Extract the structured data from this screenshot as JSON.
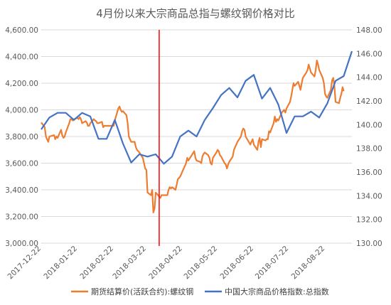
{
  "chart_data": {
    "type": "line",
    "title": "4月份以来大宗商品总指与螺纹钢价格对比",
    "xlabel": "",
    "ylabel": "",
    "ylim_left": [
      3000,
      4600
    ],
    "ylim_right": [
      130,
      148
    ],
    "left_ticks": [
      "3,000.00",
      "3,200.00",
      "3,400.00",
      "3,600.00",
      "3,800.00",
      "4,000.00",
      "4,200.00",
      "4,400.00",
      "4,600.00"
    ],
    "right_ticks": [
      "130.00",
      "132.00",
      "134.00",
      "136.00",
      "138.00",
      "140.00",
      "142.00",
      "144.00",
      "146.00",
      "148.00"
    ],
    "x_ticks": [
      "2017-12-22",
      "2018-01-22",
      "2018-02-22",
      "2018-03-22",
      "2018-04-22",
      "2018-05-22",
      "2018-06-22",
      "2018-07-22",
      "2018-08-22"
    ],
    "grid": true,
    "legend_position": "bottom",
    "marker": {
      "date": "2018-04-02",
      "color": "#ff0000"
    },
    "series": [
      {
        "name": "期货结算价(活跃合约):螺纹钢",
        "axis": "left",
        "color": "#ed7d31",
        "points": [
          [
            "2017-12-22",
            3905
          ],
          [
            "2017-12-25",
            3870
          ],
          [
            "2017-12-26",
            3800
          ],
          [
            "2017-12-27",
            3780
          ],
          [
            "2017-12-28",
            3760
          ],
          [
            "2017-12-29",
            3800
          ],
          [
            "2018-01-02",
            3810
          ],
          [
            "2018-01-03",
            3780
          ],
          [
            "2018-01-04",
            3800
          ],
          [
            "2018-01-05",
            3790
          ],
          [
            "2018-01-08",
            3850
          ],
          [
            "2018-01-09",
            3810
          ],
          [
            "2018-01-10",
            3790
          ],
          [
            "2018-01-11",
            3800
          ],
          [
            "2018-01-12",
            3830
          ],
          [
            "2018-01-15",
            3900
          ],
          [
            "2018-01-16",
            3930
          ],
          [
            "2018-01-17",
            3930
          ],
          [
            "2018-01-18",
            3920
          ],
          [
            "2018-01-19",
            3930
          ],
          [
            "2018-01-22",
            3940
          ],
          [
            "2018-01-23",
            3930
          ],
          [
            "2018-01-24",
            3945
          ],
          [
            "2018-01-25",
            3930
          ],
          [
            "2018-01-26",
            3900
          ],
          [
            "2018-01-29",
            3915
          ],
          [
            "2018-01-30",
            3905
          ],
          [
            "2018-01-31",
            3880
          ],
          [
            "2018-02-01",
            3880
          ],
          [
            "2018-02-02",
            3900
          ],
          [
            "2018-02-05",
            3930
          ],
          [
            "2018-02-06",
            3920
          ],
          [
            "2018-02-07",
            3915
          ],
          [
            "2018-02-08",
            3900
          ],
          [
            "2018-02-09",
            3900
          ],
          [
            "2018-02-12",
            3910
          ],
          [
            "2018-02-13",
            3870
          ],
          [
            "2018-02-14",
            3880
          ],
          [
            "2018-02-22",
            3880
          ],
          [
            "2018-02-23",
            3920
          ],
          [
            "2018-02-26",
            4010
          ],
          [
            "2018-02-27",
            4025
          ],
          [
            "2018-02-28",
            4000
          ],
          [
            "2018-03-01",
            3985
          ],
          [
            "2018-03-02",
            3990
          ],
          [
            "2018-03-05",
            3960
          ],
          [
            "2018-03-06",
            3900
          ],
          [
            "2018-03-07",
            3800
          ],
          [
            "2018-03-08",
            3780
          ],
          [
            "2018-03-09",
            3760
          ],
          [
            "2018-03-12",
            3760
          ],
          [
            "2018-03-13",
            3720
          ],
          [
            "2018-03-14",
            3700
          ],
          [
            "2018-03-15",
            3690
          ],
          [
            "2018-03-16",
            3680
          ],
          [
            "2018-03-19",
            3640
          ],
          [
            "2018-03-20",
            3600
          ],
          [
            "2018-03-21",
            3560
          ],
          [
            "2018-03-22",
            3550
          ],
          [
            "2018-03-23",
            3380
          ],
          [
            "2018-03-26",
            3360
          ],
          [
            "2018-03-27",
            3400
          ],
          [
            "2018-03-28",
            3230
          ],
          [
            "2018-03-29",
            3260
          ],
          [
            "2018-03-30",
            3380
          ],
          [
            "2018-04-02",
            3350
          ],
          [
            "2018-04-03",
            3340
          ],
          [
            "2018-04-04",
            3360
          ],
          [
            "2018-04-09",
            3360
          ],
          [
            "2018-04-10",
            3400
          ],
          [
            "2018-04-11",
            3420
          ],
          [
            "2018-04-12",
            3410
          ],
          [
            "2018-04-13",
            3420
          ],
          [
            "2018-04-16",
            3400
          ],
          [
            "2018-04-17",
            3440
          ],
          [
            "2018-04-18",
            3480
          ],
          [
            "2018-04-19",
            3490
          ],
          [
            "2018-04-20",
            3500
          ],
          [
            "2018-04-23",
            3560
          ],
          [
            "2018-04-24",
            3580
          ],
          [
            "2018-04-25",
            3600
          ],
          [
            "2018-04-26",
            3640
          ],
          [
            "2018-04-27",
            3620
          ],
          [
            "2018-05-02",
            3690
          ],
          [
            "2018-05-03",
            3640
          ],
          [
            "2018-05-04",
            3620
          ],
          [
            "2018-05-07",
            3610
          ],
          [
            "2018-05-08",
            3600
          ],
          [
            "2018-05-09",
            3650
          ],
          [
            "2018-05-10",
            3670
          ],
          [
            "2018-05-11",
            3680
          ],
          [
            "2018-05-14",
            3660
          ],
          [
            "2018-05-15",
            3640
          ],
          [
            "2018-05-16",
            3600
          ],
          [
            "2018-05-17",
            3590
          ],
          [
            "2018-05-18",
            3640
          ],
          [
            "2018-05-21",
            3680
          ],
          [
            "2018-05-22",
            3700
          ],
          [
            "2018-05-23",
            3690
          ],
          [
            "2018-05-24",
            3660
          ],
          [
            "2018-05-25",
            3650
          ],
          [
            "2018-05-28",
            3600
          ],
          [
            "2018-05-29",
            3590
          ],
          [
            "2018-05-30",
            3560
          ],
          [
            "2018-05-31",
            3590
          ],
          [
            "2018-06-01",
            3610
          ],
          [
            "2018-06-04",
            3650
          ],
          [
            "2018-06-05",
            3700
          ],
          [
            "2018-06-06",
            3720
          ],
          [
            "2018-06-07",
            3740
          ],
          [
            "2018-06-08",
            3760
          ],
          [
            "2018-06-11",
            3800
          ],
          [
            "2018-06-12",
            3840
          ],
          [
            "2018-06-13",
            3860
          ],
          [
            "2018-06-14",
            3850
          ],
          [
            "2018-06-15",
            3800
          ],
          [
            "2018-06-19",
            3740
          ],
          [
            "2018-06-20",
            3760
          ],
          [
            "2018-06-21",
            3780
          ],
          [
            "2018-06-22",
            3740
          ],
          [
            "2018-06-25",
            3700
          ],
          [
            "2018-06-26",
            3760
          ],
          [
            "2018-06-27",
            3790
          ],
          [
            "2018-06-28",
            3720
          ],
          [
            "2018-06-29",
            3780
          ],
          [
            "2018-07-02",
            3770
          ],
          [
            "2018-07-03",
            3780
          ],
          [
            "2018-07-04",
            3780
          ],
          [
            "2018-07-05",
            3840
          ],
          [
            "2018-07-06",
            3830
          ],
          [
            "2018-07-09",
            3900
          ],
          [
            "2018-07-10",
            3950
          ],
          [
            "2018-07-11",
            3910
          ],
          [
            "2018-07-12",
            3930
          ],
          [
            "2018-07-13",
            3920
          ],
          [
            "2018-07-16",
            3980
          ],
          [
            "2018-07-17",
            3990
          ],
          [
            "2018-07-18",
            4000
          ],
          [
            "2018-07-19",
            3980
          ],
          [
            "2018-07-20",
            4010
          ],
          [
            "2018-07-23",
            4060
          ],
          [
            "2018-07-24",
            4100
          ],
          [
            "2018-07-25",
            4150
          ],
          [
            "2018-07-26",
            4200
          ],
          [
            "2018-07-27",
            4180
          ],
          [
            "2018-07-30",
            4210
          ],
          [
            "2018-07-31",
            4180
          ],
          [
            "2018-08-01",
            4150
          ],
          [
            "2018-08-02",
            4200
          ],
          [
            "2018-08-03",
            4240
          ],
          [
            "2018-08-06",
            4280
          ],
          [
            "2018-08-07",
            4300
          ],
          [
            "2018-08-08",
            4340
          ],
          [
            "2018-08-09",
            4310
          ],
          [
            "2018-08-10",
            4280
          ],
          [
            "2018-08-13",
            4250
          ],
          [
            "2018-08-14",
            4300
          ],
          [
            "2018-08-15",
            4370
          ],
          [
            "2018-08-16",
            4340
          ],
          [
            "2018-08-17",
            4300
          ],
          [
            "2018-08-20",
            4240
          ],
          [
            "2018-08-21",
            4200
          ],
          [
            "2018-08-22",
            4120
          ],
          [
            "2018-08-23",
            4100
          ],
          [
            "2018-08-24",
            4090
          ],
          [
            "2018-08-27",
            4150
          ],
          [
            "2018-08-28",
            4220
          ],
          [
            "2018-08-29",
            4240
          ],
          [
            "2018-08-30",
            4180
          ],
          [
            "2018-08-31",
            4060
          ],
          [
            "2018-09-03",
            4050
          ],
          [
            "2018-09-04",
            4090
          ],
          [
            "2018-09-05",
            4120
          ],
          [
            "2018-09-06",
            4170
          ],
          [
            "2018-09-07",
            4140
          ]
        ]
      },
      {
        "name": "中国大宗商品价格指数:总指数",
        "axis": "right",
        "color": "#4472c4",
        "points": [
          [
            "2017-12-22",
            139.6
          ],
          [
            "2017-12-29",
            140.6
          ],
          [
            "2018-01-05",
            141.0
          ],
          [
            "2018-01-12",
            141.0
          ],
          [
            "2018-01-19",
            140.4
          ],
          [
            "2018-01-26",
            141.0
          ],
          [
            "2018-02-02",
            140.7
          ],
          [
            "2018-02-09",
            138.8
          ],
          [
            "2018-02-16",
            138.8
          ],
          [
            "2018-02-23",
            140.4
          ],
          [
            "2018-03-02",
            138.4
          ],
          [
            "2018-03-09",
            136.8
          ],
          [
            "2018-03-16",
            137.5
          ],
          [
            "2018-03-23",
            137.3
          ],
          [
            "2018-03-30",
            137.5
          ],
          [
            "2018-04-06",
            136.7
          ],
          [
            "2018-04-13",
            137.3
          ],
          [
            "2018-04-20",
            139.0
          ],
          [
            "2018-04-27",
            139.5
          ],
          [
            "2018-05-04",
            139.0
          ],
          [
            "2018-05-11",
            140.4
          ],
          [
            "2018-05-18",
            141.4
          ],
          [
            "2018-05-25",
            142.5
          ],
          [
            "2018-06-01",
            143.1
          ],
          [
            "2018-06-08",
            142.3
          ],
          [
            "2018-06-15",
            143.7
          ],
          [
            "2018-06-22",
            144.2
          ],
          [
            "2018-06-29",
            142.2
          ],
          [
            "2018-07-06",
            143.1
          ],
          [
            "2018-07-13",
            141.7
          ],
          [
            "2018-07-20",
            139.3
          ],
          [
            "2018-07-27",
            140.7
          ],
          [
            "2018-08-03",
            140.7
          ],
          [
            "2018-08-10",
            141.1
          ],
          [
            "2018-08-17",
            140.6
          ],
          [
            "2018-08-24",
            141.8
          ],
          [
            "2018-08-31",
            143.7
          ],
          [
            "2018-09-07",
            144.1
          ],
          [
            "2018-09-14",
            146.2
          ]
        ]
      }
    ]
  }
}
